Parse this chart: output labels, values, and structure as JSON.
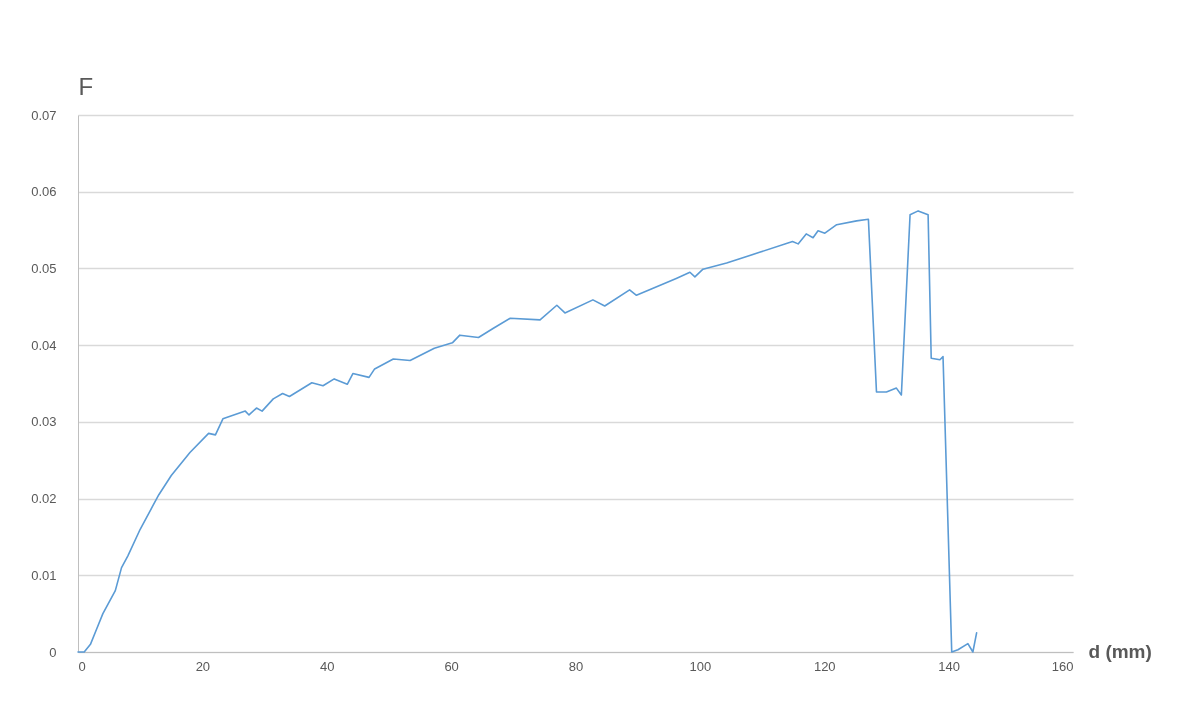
{
  "chart_data": {
    "type": "line",
    "xlabel": "d (mm)",
    "ylabel": "F",
    "xlim": [
      0,
      160
    ],
    "xticks": [
      0,
      20,
      40,
      60,
      80,
      100,
      120,
      140,
      160
    ],
    "ylim": [
      0,
      0.07
    ],
    "yticks": [
      0,
      0.01,
      0.02,
      0.03,
      0.04,
      0.05,
      0.06,
      0.07
    ],
    "grid": "y",
    "marker": "none",
    "line_style": "solid",
    "series": [
      {
        "color": "#5b9bd5",
        "x": [
          0,
          1,
          2,
          3,
          4,
          6,
          7,
          8,
          10,
          12,
          13,
          15,
          18,
          21,
          22.1,
          23.3,
          26.9,
          27.5,
          28.7,
          29.6,
          31.4,
          32.9,
          34,
          37.6,
          39.4,
          41.2,
          43.3,
          44.2,
          46.8,
          47.7,
          50.7,
          53.4,
          57.3,
          60.2,
          61.4,
          64.4,
          66.8,
          69.5,
          74.3,
          77,
          78.3,
          82.8,
          84.7,
          88.7,
          89.8,
          96.2,
          98.4,
          99.2,
          100.5,
          104.3,
          109.6,
          114.9,
          115.8,
          117.1,
          118.2,
          119,
          120.1,
          122,
          125.2,
          127.1,
          128.4,
          130,
          131.6,
          132.4,
          133.8,
          135.1,
          136.7,
          137.2,
          138.6,
          139.1,
          140.5,
          141.5,
          143.1,
          143.9,
          144.5
        ],
        "values": [
          0,
          0,
          0.001,
          0.003,
          0.005,
          0.008,
          0.011,
          0.0125,
          0.016,
          0.019,
          0.0205,
          0.023,
          0.026,
          0.0285,
          0.0283,
          0.0304,
          0.0314,
          0.0309,
          0.0318,
          0.0314,
          0.033,
          0.0337,
          0.0333,
          0.0351,
          0.0347,
          0.0356,
          0.0349,
          0.0363,
          0.0358,
          0.0369,
          0.0382,
          0.038,
          0.0396,
          0.0403,
          0.0413,
          0.041,
          0.0422,
          0.0435,
          0.0433,
          0.0452,
          0.0442,
          0.0459,
          0.0451,
          0.0472,
          0.0465,
          0.0487,
          0.0495,
          0.0489,
          0.0499,
          0.0507,
          0.0521,
          0.0535,
          0.0532,
          0.0545,
          0.054,
          0.0549,
          0.0546,
          0.0557,
          0.0562,
          0.0564,
          0.0339,
          0.0339,
          0.0344,
          0.0335,
          0.057,
          0.0575,
          0.057,
          0.0383,
          0.0381,
          0.0385,
          0,
          0.0003,
          0.0011,
          0,
          0.0025
        ]
      }
    ]
  }
}
